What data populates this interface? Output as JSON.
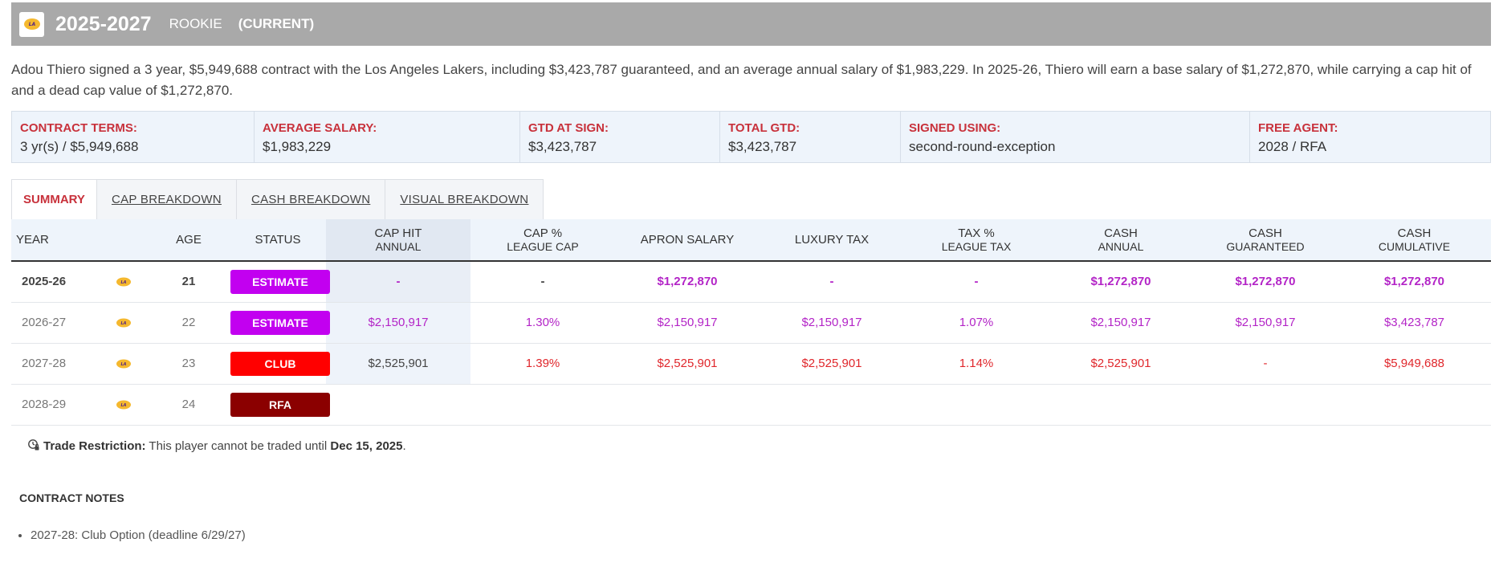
{
  "header": {
    "years": "2025-2027",
    "type": "ROOKIE",
    "status": "(CURRENT)",
    "logo_icon": "lakers-logo-icon"
  },
  "description": "Adou Thiero signed a 3 year, $5,949,688 contract with the Los Angeles Lakers, including $3,423,787 guaranteed, and an average annual salary of $1,983,229. In 2025-26, Thiero will earn a base salary of $1,272,870, while carrying a cap hit of and a dead cap value of $1,272,870.",
  "terms": [
    {
      "label": "CONTRACT TERMS:",
      "value": "3 yr(s) / $5,949,688"
    },
    {
      "label": "AVERAGE SALARY:",
      "value": "$1,983,229"
    },
    {
      "label": "GTD AT SIGN:",
      "value": "$3,423,787"
    },
    {
      "label": "TOTAL GTD:",
      "value": "$3,423,787"
    },
    {
      "label": "SIGNED USING:",
      "value": "second-round-exception"
    },
    {
      "label": "FREE AGENT:",
      "value": "2028 / RFA"
    }
  ],
  "tabs": [
    {
      "label": "SUMMARY",
      "active": true
    },
    {
      "label": "CAP BREAKDOWN"
    },
    {
      "label": "CASH BREAKDOWN"
    },
    {
      "label": "VISUAL BREAKDOWN"
    }
  ],
  "table": {
    "headers": {
      "year": "YEAR",
      "age": "AGE",
      "status": "STATUS",
      "cap_hit": "CAP HIT",
      "cap_hit_sub": "ANNUAL",
      "cap_pct": "CAP %",
      "cap_pct_sub": "LEAGUE CAP",
      "apron": "APRON SALARY",
      "luxury": "LUXURY TAX",
      "tax_pct": "TAX %",
      "tax_pct_sub": "LEAGUE TAX",
      "cash": "CASH",
      "cash_sub": "ANNUAL",
      "cash_gtd": "CASH",
      "cash_gtd_sub": "GUARANTEED",
      "cash_cum": "CASH",
      "cash_cum_sub": "CUMULATIVE"
    },
    "rows": [
      {
        "year": "2025-26",
        "age": "21",
        "status": "ESTIMATE",
        "cap_hit": "-",
        "cap_pct": "-",
        "apron": "$1,272,870",
        "luxury": "-",
        "tax_pct": "-",
        "cash": "$1,272,870",
        "cash_gtd": "$1,272,870",
        "cash_cum": "$1,272,870"
      },
      {
        "year": "2026-27",
        "age": "22",
        "status": "ESTIMATE",
        "cap_hit": "$2,150,917",
        "cap_pct": "1.30%",
        "apron": "$2,150,917",
        "luxury": "$2,150,917",
        "tax_pct": "1.07%",
        "cash": "$2,150,917",
        "cash_gtd": "$2,150,917",
        "cash_cum": "$3,423,787"
      },
      {
        "year": "2027-28",
        "age": "23",
        "status": "CLUB",
        "cap_hit": "$2,525,901",
        "cap_pct": "1.39%",
        "apron": "$2,525,901",
        "luxury": "$2,525,901",
        "tax_pct": "1.14%",
        "cash": "$2,525,901",
        "cash_gtd": "-",
        "cash_cum": "$5,949,688"
      },
      {
        "year": "2028-29",
        "age": "24",
        "status": "RFA",
        "cap_hit": "",
        "cap_pct": "",
        "apron": "",
        "luxury": "",
        "tax_pct": "",
        "cash": "",
        "cash_gtd": "",
        "cash_cum": ""
      }
    ]
  },
  "restriction": {
    "label": "Trade Restriction:",
    "text": " This player cannot be traded until ",
    "date": "Dec 15, 2025",
    "end": "."
  },
  "notes": {
    "title": "CONTRACT NOTES",
    "items": [
      "2027-28: Club Option (deadline 6/29/27)"
    ]
  },
  "colors": {
    "header_bg": "#a9a9a9",
    "accent_red": "#c8313b",
    "estimate": "#c200f0",
    "club": "#ff0000",
    "rfa": "#8b0000",
    "purple_text": "#b324c7",
    "red_text": "#e0262b"
  }
}
